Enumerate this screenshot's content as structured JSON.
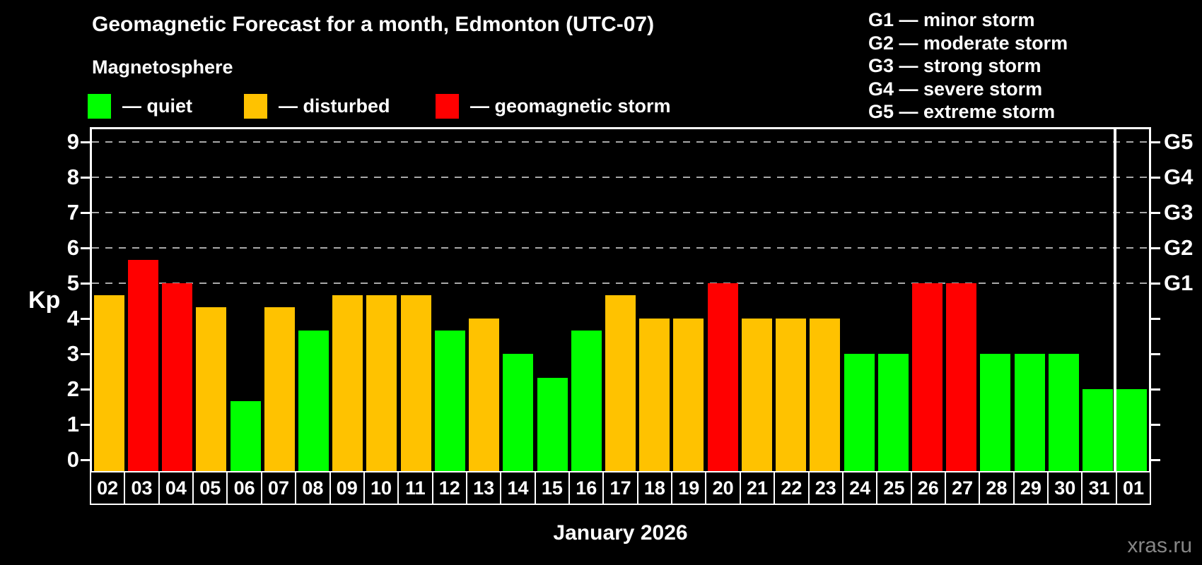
{
  "chart_data": {
    "type": "bar",
    "title": "Geomagnetic Forecast for a month, Edmonton (UTC-07)",
    "subtitle": "Magnetosphere",
    "ylabel": "Kp",
    "xlabel": "January 2026",
    "ylim": [
      -0.34,
      9.36
    ],
    "yticks": [
      0,
      1,
      2,
      3,
      4,
      5,
      6,
      7,
      8,
      9
    ],
    "gridlines_at": [
      5,
      6,
      7,
      8,
      9
    ],
    "grid_dashed": true,
    "right_axis": [
      {
        "kp": 5,
        "label": "G1"
      },
      {
        "kp": 6,
        "label": "G2"
      },
      {
        "kp": 7,
        "label": "G3"
      },
      {
        "kp": 8,
        "label": "G4"
      },
      {
        "kp": 9,
        "label": "G5"
      }
    ],
    "categories": [
      "02",
      "03",
      "04",
      "05",
      "06",
      "07",
      "08",
      "09",
      "10",
      "11",
      "12",
      "13",
      "14",
      "15",
      "16",
      "17",
      "18",
      "19",
      "20",
      "21",
      "22",
      "23",
      "24",
      "25",
      "26",
      "27",
      "28",
      "29",
      "30",
      "31",
      "01"
    ],
    "values": [
      4.67,
      5.67,
      5.0,
      4.33,
      1.67,
      4.33,
      3.67,
      4.67,
      4.67,
      4.67,
      3.67,
      4.0,
      3.0,
      2.33,
      3.67,
      4.67,
      4.0,
      4.0,
      5.0,
      4.0,
      4.0,
      4.0,
      3.0,
      3.0,
      5.0,
      5.0,
      3.0,
      3.0,
      3.0,
      2.0,
      2.0
    ],
    "statuses": [
      "disturbed",
      "storm",
      "storm",
      "disturbed",
      "quiet",
      "disturbed",
      "quiet",
      "disturbed",
      "disturbed",
      "disturbed",
      "quiet",
      "disturbed",
      "quiet",
      "quiet",
      "quiet",
      "disturbed",
      "disturbed",
      "disturbed",
      "storm",
      "disturbed",
      "disturbed",
      "disturbed",
      "quiet",
      "quiet",
      "storm",
      "storm",
      "quiet",
      "quiet",
      "quiet",
      "quiet",
      "quiet"
    ],
    "status_colors": {
      "quiet": "#00FF00",
      "disturbed": "#FFC200",
      "storm": "#FF0000"
    },
    "month_separator_after_index": 29,
    "legend_position": "top-left"
  },
  "legend": {
    "items": [
      {
        "label": "— quiet",
        "status": "quiet"
      },
      {
        "label": "— disturbed",
        "status": "disturbed"
      },
      {
        "label": "— geomagnetic storm",
        "status": "storm"
      }
    ]
  },
  "g_legend": {
    "items": [
      "G1 — minor storm",
      "G2 — moderate storm",
      "G3 — strong storm",
      "G4 — severe storm",
      "G5 — extreme storm"
    ]
  },
  "footer": {
    "watermark": "xras.ru"
  }
}
